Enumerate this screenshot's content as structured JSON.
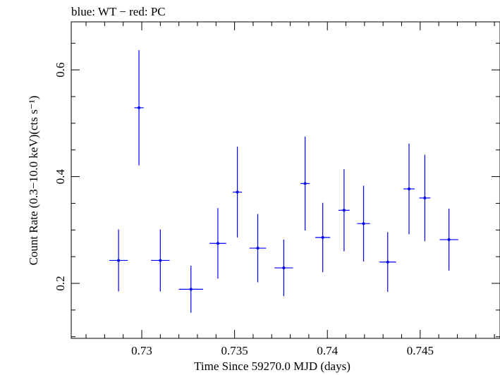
{
  "chart_data": {
    "type": "scatter",
    "title": "blue: WT − red: PC",
    "xlabel": "Time Since 59270.0 MJD (days)",
    "ylabel": "Count Rate (0.3−10.0 keV)(cts s⁻¹)",
    "xlim": [
      0.7262,
      0.7493
    ],
    "ylim": [
      0.097,
      0.69
    ],
    "x_ticks": [
      0.73,
      0.735,
      0.74,
      0.745
    ],
    "x_tick_labels": [
      "0.73",
      "0.735",
      "0.74",
      "0.745"
    ],
    "y_ticks": [
      0.2,
      0.4,
      0.6
    ],
    "y_tick_labels": [
      "0.2",
      "0.4",
      "0.6"
    ],
    "grid": false,
    "series": [
      {
        "name": "WT",
        "color": "#0000ff",
        "points": [
          {
            "x": 0.72875,
            "y": 0.243,
            "xerr": 0.0005,
            "yerr": 0.058
          },
          {
            "x": 0.72985,
            "y": 0.529,
            "xerr": 0.00025,
            "yerr": 0.108
          },
          {
            "x": 0.731,
            "y": 0.243,
            "xerr": 0.0005,
            "yerr": 0.058
          },
          {
            "x": 0.73265,
            "y": 0.189,
            "xerr": 0.00065,
            "yerr": 0.044
          },
          {
            "x": 0.7341,
            "y": 0.275,
            "xerr": 0.00045,
            "yerr": 0.066
          },
          {
            "x": 0.73515,
            "y": 0.371,
            "xerr": 0.00025,
            "yerr": 0.085
          },
          {
            "x": 0.73625,
            "y": 0.266,
            "xerr": 0.00045,
            "yerr": 0.064
          },
          {
            "x": 0.73765,
            "y": 0.229,
            "xerr": 0.0005,
            "yerr": 0.053
          },
          {
            "x": 0.7388,
            "y": 0.387,
            "xerr": 0.00025,
            "yerr": 0.088
          },
          {
            "x": 0.73975,
            "y": 0.286,
            "xerr": 0.0004,
            "yerr": 0.065
          },
          {
            "x": 0.7409,
            "y": 0.337,
            "xerr": 0.0003,
            "yerr": 0.077
          },
          {
            "x": 0.74195,
            "y": 0.312,
            "xerr": 0.00035,
            "yerr": 0.071
          },
          {
            "x": 0.74325,
            "y": 0.24,
            "xerr": 0.00045,
            "yerr": 0.056
          },
          {
            "x": 0.7444,
            "y": 0.377,
            "xerr": 0.0003,
            "yerr": 0.085
          },
          {
            "x": 0.74525,
            "y": 0.36,
            "xerr": 0.0003,
            "yerr": 0.081
          },
          {
            "x": 0.74655,
            "y": 0.282,
            "xerr": 0.0005,
            "yerr": 0.058
          }
        ]
      }
    ]
  }
}
